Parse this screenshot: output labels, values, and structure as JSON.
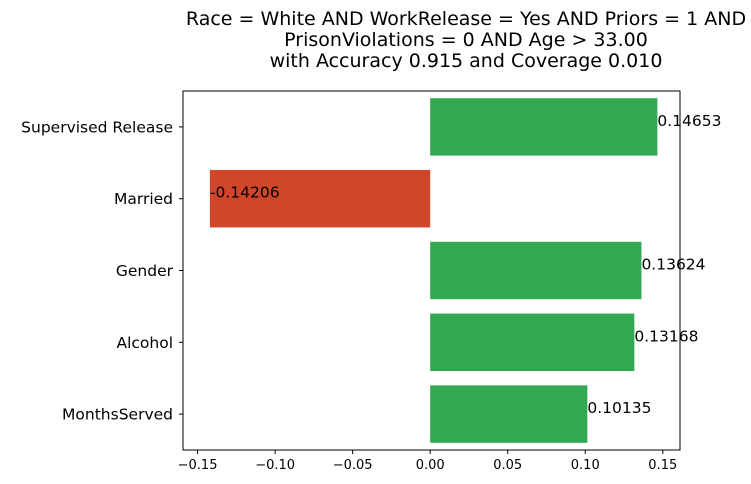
{
  "chart_data": {
    "type": "bar",
    "orientation": "horizontal",
    "title_lines": [
      "Race = White AND WorkRelease = Yes AND Priors = 1 AND",
      "PrisonViolations = 0 AND Age > 33.00",
      "with Accuracy 0.915 and Coverage 0.010"
    ],
    "categories": [
      "Supervised Release",
      "Married",
      "Gender",
      "Alcohol",
      "MonthsServed"
    ],
    "values": [
      0.14653,
      -0.14206,
      0.13624,
      0.13168,
      0.10135
    ],
    "value_labels": [
      "0.14653",
      "-0.14206",
      "0.13624",
      "0.13168",
      "0.10135"
    ],
    "x_ticks": [
      -0.15,
      -0.1,
      -0.05,
      0.0,
      0.05,
      0.1,
      0.15
    ],
    "x_tick_labels": [
      "−0.15",
      "−0.10",
      "−0.05",
      "0.00",
      "0.05",
      "0.10",
      "0.15"
    ],
    "xlim": [
      -0.1594,
      0.1611
    ],
    "xlabel": "",
    "ylabel": "",
    "grid": false,
    "colors": {
      "positive": "#33a852",
      "negative": "#d1462a"
    }
  }
}
